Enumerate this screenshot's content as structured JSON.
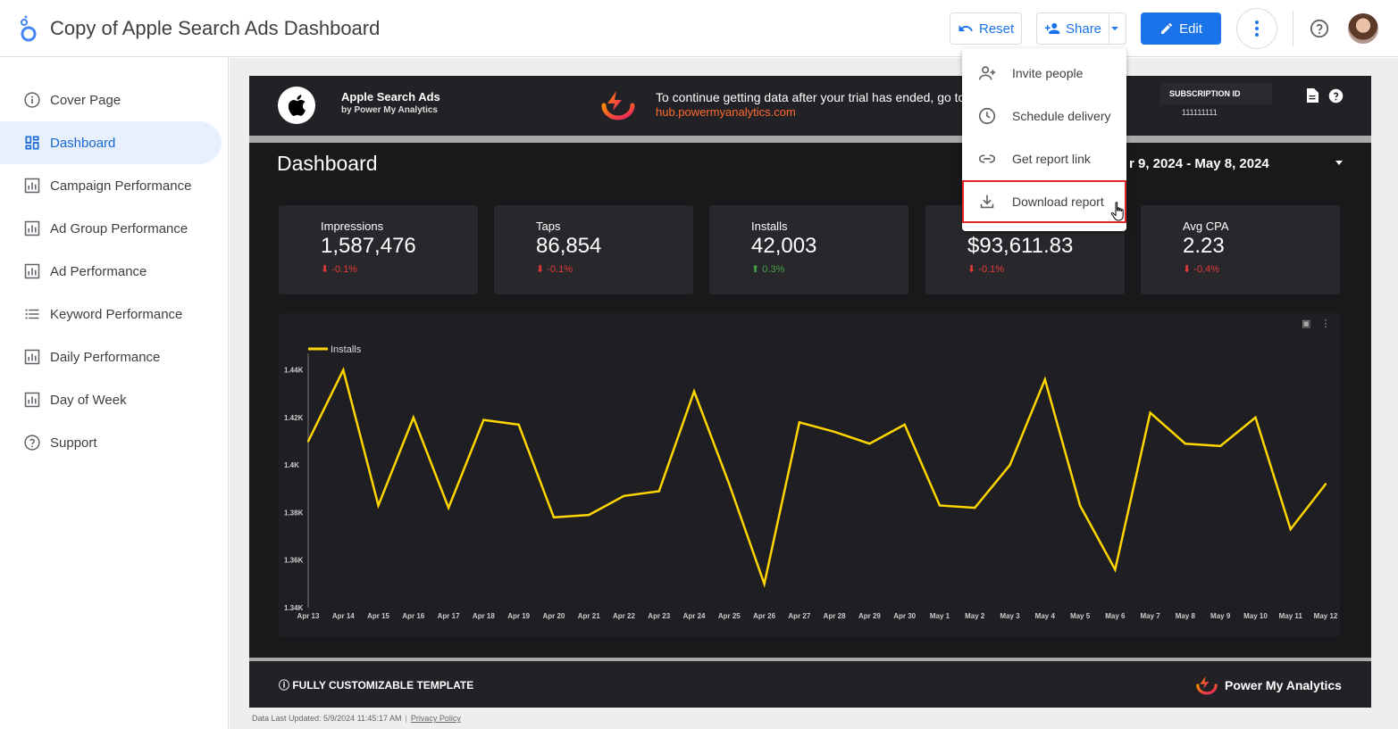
{
  "app": {
    "title": "Copy of Apple Search Ads Dashboard",
    "reset_label": "Reset",
    "share_label": "Share",
    "edit_label": "Edit",
    "accent_color": "#1a73e8"
  },
  "sidebar": {
    "items": [
      {
        "label": "Cover Page",
        "icon": "info-circle-icon",
        "active": false
      },
      {
        "label": "Dashboard",
        "icon": "dashboard-icon",
        "active": true
      },
      {
        "label": "Campaign Performance",
        "icon": "bar-chart-icon",
        "active": false
      },
      {
        "label": "Ad Group Performance",
        "icon": "bar-chart-icon",
        "active": false
      },
      {
        "label": "Ad Performance",
        "icon": "bar-chart-icon",
        "active": false
      },
      {
        "label": "Keyword Performance",
        "icon": "list-icon",
        "active": false
      },
      {
        "label": "Daily Performance",
        "icon": "bar-chart-icon",
        "active": false
      },
      {
        "label": "Day of Week",
        "icon": "bar-chart-icon",
        "active": false
      },
      {
        "label": "Support",
        "icon": "help-circle-icon",
        "active": false
      }
    ]
  },
  "share_menu": {
    "items": [
      {
        "label": "Invite people",
        "icon": "person-add-icon"
      },
      {
        "label": "Schedule delivery",
        "icon": "clock-icon"
      },
      {
        "label": "Get report link",
        "icon": "link-icon"
      },
      {
        "label": "Download report",
        "icon": "download-icon",
        "highlighted": true
      }
    ]
  },
  "report": {
    "brand_name": "Apple Search Ads",
    "brand_sub": "by Power My Analytics",
    "trial_message": "To continue getting data after your trial has ended, go to",
    "trial_link": "hub.powermyanalytics.com",
    "subscription_label": "SUBSCRIPTION ID",
    "subscription_id": "111111111",
    "dashboard_title": "Dashboard",
    "date_range": "r 9, 2024 - May 8, 2024",
    "kpis": [
      {
        "label": "Impressions",
        "value": "1,587,476",
        "change": "-0.1%",
        "direction": "down"
      },
      {
        "label": "Taps",
        "value": "86,854",
        "change": "-0.1%",
        "direction": "down"
      },
      {
        "label": "Installs",
        "value": "42,003",
        "change": "0.3%",
        "direction": "up"
      },
      {
        "label": "",
        "value": "$93,611.83",
        "change": "-0.1%",
        "direction": "down"
      },
      {
        "label": "Avg CPA",
        "value": "2.23",
        "change": "-0.4%",
        "direction": "down"
      }
    ],
    "footer_left": "FULLY CUSTOMIZABLE TEMPLATE",
    "footer_brand": "Power My Analytics",
    "data_updated": "Data Last Updated: 5/9/2024 11:45:17 AM",
    "privacy_link": "Privacy Policy"
  },
  "chart_data": {
    "type": "line",
    "legend": "top-left",
    "series": [
      {
        "name": "Installs",
        "color": "#ffd600",
        "values": [
          1410,
          1440,
          1383,
          1420,
          1382,
          1419,
          1417,
          1378,
          1379,
          1387,
          1389,
          1431,
          1392,
          1350,
          1418,
          1414,
          1409,
          1417,
          1383,
          1382,
          1400,
          1436,
          1383,
          1356,
          1422,
          1409,
          1408,
          1420,
          1373,
          1392
        ]
      }
    ],
    "categories": [
      "Apr 13",
      "Apr 14",
      "Apr 15",
      "Apr 16",
      "Apr 17",
      "Apr 18",
      "Apr 19",
      "Apr 20",
      "Apr 21",
      "Apr 22",
      "Apr 23",
      "Apr 24",
      "Apr 25",
      "Apr 26",
      "Apr 27",
      "Apr 28",
      "Apr 29",
      "Apr 30",
      "May 1",
      "May 2",
      "May 3",
      "May 4",
      "May 5",
      "May 6",
      "May 7",
      "May 8",
      "May 9",
      "May 10",
      "May 11",
      "May 12"
    ],
    "y_ticks": [
      "1.34K",
      "1.36K",
      "1.38K",
      "1.4K",
      "1.42K",
      "1.44K"
    ],
    "ylim": [
      1340,
      1444
    ]
  }
}
